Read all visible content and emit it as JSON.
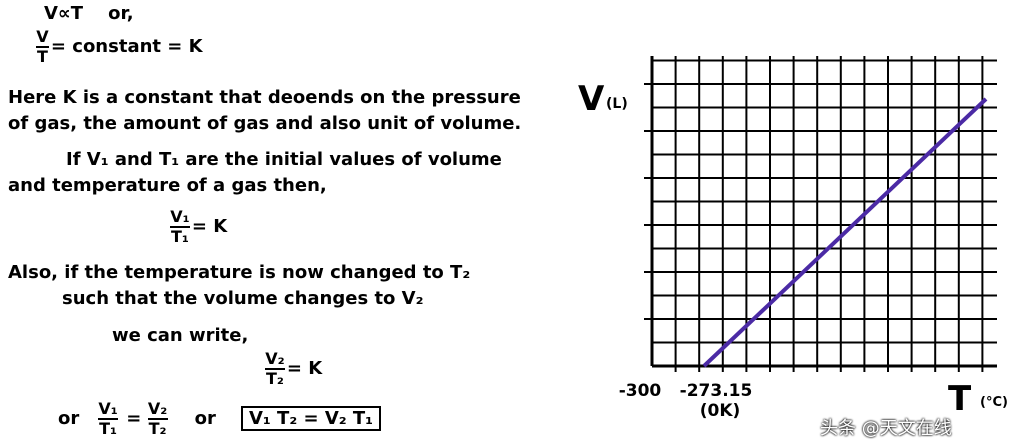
{
  "intro": {
    "proportion": "V∝T",
    "or": "or,",
    "fraction": {
      "num": "V",
      "den": "T"
    },
    "equation": "= constant = K"
  },
  "lines": [
    "Here K is a constant that deoends on the pressure",
    "of gas, the amount of gas and also unit of volume.",
    "If V₁ and T₁ are the initial values of volume",
    "and temperature of a gas then,"
  ],
  "eq1": {
    "num": "V₁",
    "den": "T₁",
    "rest": "= K"
  },
  "lines2": [
    "Also, if the temperature is now changed to T₂",
    "such that the volume changes to V₂",
    "we can write,"
  ],
  "eq2": {
    "num": "V₂",
    "den": "T₂",
    "rest": "= K"
  },
  "final": {
    "or1": "or",
    "left": {
      "num": "V₁",
      "den": "T₁"
    },
    "equals": "=",
    "right": {
      "num": "V₂",
      "den": "T₂"
    },
    "or2": "or",
    "boxed": "V₁ T₂ = V₂ T₁"
  },
  "graph": {
    "y_label": "V",
    "y_unit": "(L)",
    "x_label": "T",
    "x_unit": "(°C)",
    "tick_left": "-300",
    "tick_zero": "-273.15",
    "tick_zero_note": "(0K)"
  },
  "watermark": "头条 @天文在线"
}
